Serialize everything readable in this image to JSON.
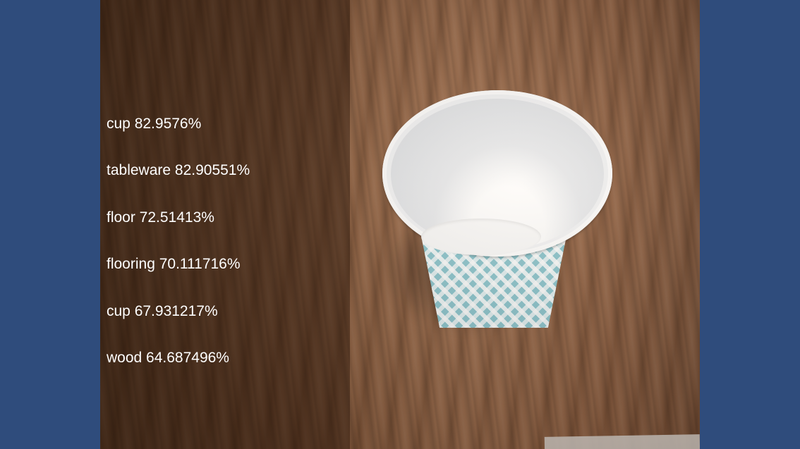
{
  "detections": [
    "cup 82.9576%",
    "tableware 82.90551%",
    "floor 72.51413%",
    "flooring 70.111716%",
    "cup 67.931217%",
    "wood 64.687496%"
  ],
  "colors": {
    "background": "#2f4c7c",
    "label_text": "#ffffff"
  }
}
